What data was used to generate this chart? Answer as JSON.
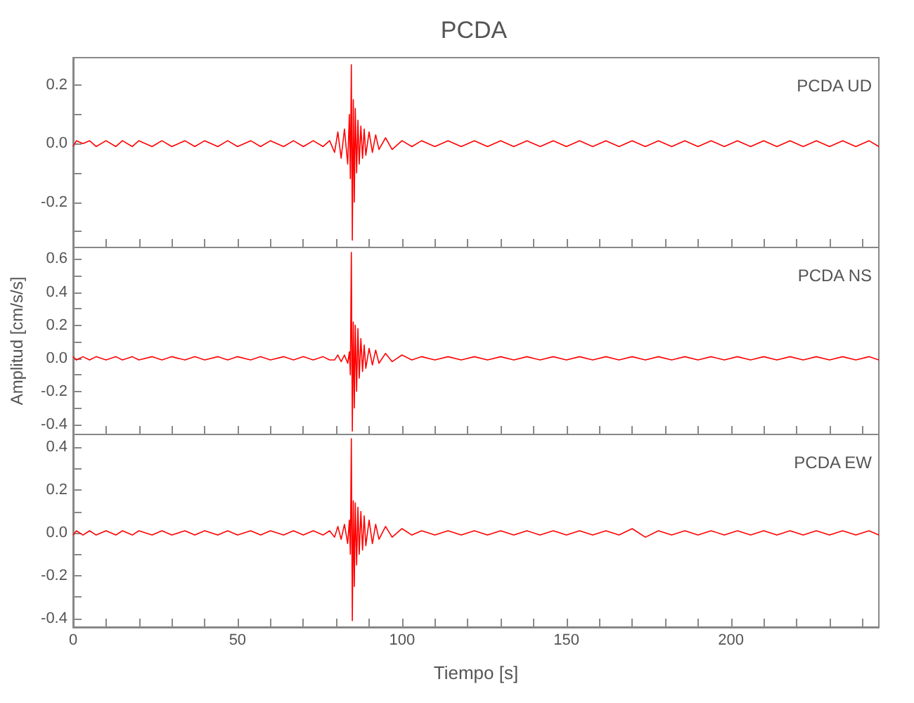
{
  "chart_data": [
    {
      "type": "line",
      "title": "PCDA",
      "annotations": [
        "PCDA UD"
      ],
      "tick_labels": "y",
      "x": [
        0,
        1,
        3,
        5,
        7,
        10,
        13,
        15,
        18,
        20,
        24,
        27,
        30,
        34,
        37,
        40,
        44,
        47,
        50,
        54,
        57,
        60,
        64,
        67,
        70,
        73,
        76,
        78,
        79.5,
        80.5,
        81.5,
        82.5,
        83.5,
        84,
        84.3,
        84.6,
        84.9,
        85.2,
        85.5,
        85.8,
        86.2,
        86.6,
        87,
        87.5,
        88,
        88.5,
        89,
        90,
        91,
        92,
        93,
        95,
        97,
        100,
        103,
        106,
        110,
        114,
        118,
        122,
        126,
        130,
        134,
        138,
        142,
        146,
        150,
        154,
        158,
        162,
        166,
        170,
        174,
        178,
        182,
        186,
        190,
        194,
        198,
        202,
        206,
        210,
        214,
        218,
        222,
        226,
        230,
        234,
        238,
        242,
        245
      ],
      "series": [
        {
          "color": "#ff0000",
          "values": [
            -0.01,
            0.01,
            0,
            0.01,
            -0.01,
            0.01,
            -0.01,
            0.01,
            -0.01,
            0.01,
            -0.01,
            0.01,
            -0.01,
            0.01,
            -0.01,
            0.01,
            -0.01,
            0.01,
            -0.01,
            0.01,
            -0.01,
            0.01,
            -0.01,
            0.01,
            -0.01,
            0.01,
            -0.01,
            0.01,
            -0.03,
            0.04,
            -0.05,
            0.05,
            -0.07,
            0.1,
            -0.12,
            0.27,
            -0.33,
            0.15,
            -0.2,
            0.12,
            -0.1,
            0.08,
            -0.07,
            0.06,
            -0.05,
            0.05,
            -0.04,
            0.04,
            -0.03,
            0.03,
            -0.02,
            0.02,
            -0.02,
            0.01,
            -0.01,
            0.01,
            -0.01,
            0.01,
            -0.01,
            0.01,
            -0.01,
            0.01,
            -0.01,
            0.01,
            -0.01,
            0.01,
            -0.01,
            0.01,
            -0.01,
            0.01,
            -0.01,
            0.01,
            -0.01,
            0.01,
            -0.01,
            0.01,
            -0.01,
            0.01,
            -0.01,
            0.01,
            -0.01,
            0.01,
            -0.01,
            0.01,
            -0.01,
            0.01,
            -0.01,
            0.01,
            -0.01,
            0.01,
            -0.01
          ]
        }
      ],
      "xlim": [
        0,
        245
      ],
      "xticks": [
        0,
        {
          "value": 10,
          "label": null
        },
        {
          "value": 20,
          "label": null
        },
        {
          "value": 30,
          "label": null
        },
        {
          "value": 40,
          "label": null
        },
        50,
        {
          "value": 60,
          "label": null
        },
        {
          "value": 70,
          "label": null
        },
        {
          "value": 80,
          "label": null
        },
        {
          "value": 90,
          "label": null
        },
        100,
        {
          "value": 110,
          "label": null
        },
        {
          "value": 120,
          "label": null
        },
        {
          "value": 130,
          "label": null
        },
        {
          "value": 140,
          "label": null
        },
        150,
        {
          "value": 160,
          "label": null
        },
        {
          "value": 170,
          "label": null
        },
        {
          "value": 180,
          "label": null
        },
        {
          "value": 190,
          "label": null
        },
        200,
        {
          "value": 210,
          "label": null
        },
        {
          "value": 220,
          "label": null
        },
        {
          "value": 230,
          "label": null
        },
        {
          "value": 240,
          "label": null
        }
      ],
      "ylim": [
        -0.355,
        0.294
      ],
      "yticks": [
        {
          "value": -0.3,
          "label": null
        },
        -0.2,
        {
          "value": -0.1,
          "label": null
        },
        {
          "value": 0,
          "label": "0.0"
        },
        {
          "value": 0.1,
          "label": null
        },
        0.2
      ]
    },
    {
      "type": "line",
      "ylabel": "Amplitud [cm/s/s]",
      "annotations": [
        "PCDA NS"
      ],
      "tick_labels": "y",
      "x": [
        0,
        1,
        3,
        5,
        7,
        10,
        13,
        15,
        18,
        20,
        24,
        27,
        30,
        34,
        37,
        40,
        44,
        47,
        50,
        54,
        57,
        60,
        64,
        67,
        70,
        73,
        76,
        78,
        79.5,
        80.5,
        81.5,
        82.5,
        83.5,
        84,
        84.3,
        84.6,
        84.9,
        85.2,
        85.5,
        85.8,
        86.2,
        86.6,
        87,
        87.5,
        88,
        88.5,
        89,
        90,
        91,
        92,
        93,
        95,
        97,
        100,
        103,
        106,
        110,
        114,
        118,
        122,
        126,
        130,
        134,
        138,
        142,
        146,
        150,
        154,
        158,
        162,
        166,
        170,
        174,
        178,
        182,
        186,
        190,
        194,
        198,
        202,
        206,
        210,
        214,
        218,
        222,
        226,
        230,
        234,
        238,
        242,
        245
      ],
      "series": [
        {
          "color": "#ff0000",
          "values": [
            0.01,
            -0.01,
            0.01,
            -0.01,
            0.01,
            -0.01,
            0.01,
            -0.01,
            0.01,
            -0.01,
            0.01,
            -0.01,
            0.01,
            -0.01,
            0.01,
            -0.01,
            0.01,
            -0.01,
            0.01,
            -0.01,
            0.01,
            -0.01,
            0.01,
            -0.01,
            0.01,
            -0.01,
            0.01,
            -0.01,
            -0.01,
            0.02,
            -0.02,
            0.02,
            -0.03,
            0.04,
            -0.1,
            0.64,
            -0.44,
            0.22,
            -0.3,
            0.2,
            -0.2,
            0.18,
            -0.12,
            0.12,
            -0.08,
            0.08,
            -0.06,
            0.06,
            -0.04,
            0.05,
            -0.03,
            0.03,
            -0.02,
            0.02,
            -0.01,
            0.01,
            -0.01,
            0.01,
            -0.01,
            0.01,
            -0.01,
            0.01,
            -0.01,
            0.01,
            -0.01,
            0.01,
            -0.01,
            0.01,
            -0.01,
            0.01,
            -0.01,
            0.01,
            -0.01,
            0.01,
            -0.01,
            0.01,
            -0.01,
            0.01,
            -0.01,
            0.01,
            -0.01,
            0.01,
            -0.01,
            0.01,
            -0.01,
            0.01,
            -0.01,
            0.01,
            -0.01,
            0.01,
            -0.01
          ]
        }
      ],
      "xlim": [
        0,
        245
      ],
      "xticks": [
        0,
        {
          "value": 10,
          "label": null
        },
        {
          "value": 20,
          "label": null
        },
        {
          "value": 30,
          "label": null
        },
        {
          "value": 40,
          "label": null
        },
        50,
        {
          "value": 60,
          "label": null
        },
        {
          "value": 70,
          "label": null
        },
        {
          "value": 80,
          "label": null
        },
        {
          "value": 90,
          "label": null
        },
        100,
        {
          "value": 110,
          "label": null
        },
        {
          "value": 120,
          "label": null
        },
        {
          "value": 130,
          "label": null
        },
        {
          "value": 140,
          "label": null
        },
        150,
        {
          "value": 160,
          "label": null
        },
        {
          "value": 170,
          "label": null
        },
        {
          "value": 180,
          "label": null
        },
        {
          "value": 190,
          "label": null
        },
        200,
        {
          "value": 210,
          "label": null
        },
        {
          "value": 220,
          "label": null
        },
        {
          "value": 230,
          "label": null
        },
        {
          "value": 240,
          "label": null
        }
      ],
      "ylim": [
        -0.46,
        0.67
      ],
      "yticks": [
        -0.4,
        {
          "value": -0.3,
          "label": null
        },
        -0.2,
        {
          "value": -0.1,
          "label": null
        },
        {
          "value": 0,
          "label": "0.0"
        },
        {
          "value": 0.1,
          "label": null
        },
        0.2,
        {
          "value": 0.3,
          "label": null
        },
        0.4,
        {
          "value": 0.5,
          "label": null
        },
        0.6
      ]
    },
    {
      "type": "line",
      "xlabel": "Tiempo [s]",
      "annotations": [
        "PCDA EW"
      ],
      "x": [
        0,
        1,
        3,
        5,
        7,
        10,
        13,
        15,
        18,
        20,
        24,
        27,
        30,
        34,
        37,
        40,
        44,
        47,
        50,
        54,
        57,
        60,
        64,
        67,
        70,
        73,
        76,
        78,
        79.5,
        80.5,
        81.5,
        82.5,
        83.5,
        84,
        84.3,
        84.6,
        84.9,
        85.2,
        85.5,
        85.8,
        86.2,
        86.6,
        87,
        87.5,
        88,
        88.5,
        89,
        90,
        91,
        92,
        93,
        95,
        97,
        100,
        103,
        106,
        110,
        114,
        118,
        122,
        126,
        130,
        134,
        138,
        142,
        146,
        150,
        154,
        158,
        162,
        166,
        170,
        174,
        178,
        182,
        186,
        190,
        194,
        198,
        202,
        206,
        210,
        214,
        218,
        222,
        226,
        230,
        234,
        238,
        242,
        245
      ],
      "series": [
        {
          "color": "#ff0000",
          "values": [
            -0.01,
            0.01,
            -0.01,
            0.01,
            -0.01,
            0.01,
            -0.01,
            0.01,
            -0.01,
            0.01,
            -0.01,
            0.01,
            -0.01,
            0.01,
            -0.01,
            0.01,
            -0.01,
            0.01,
            -0.01,
            0.01,
            -0.01,
            0.01,
            -0.01,
            0.01,
            -0.01,
            0.01,
            -0.01,
            0.01,
            -0.02,
            0.03,
            -0.03,
            0.04,
            -0.05,
            0.06,
            -0.1,
            0.44,
            -0.41,
            0.15,
            -0.25,
            0.14,
            -0.15,
            0.12,
            -0.1,
            0.1,
            -0.08,
            0.08,
            -0.06,
            0.06,
            -0.05,
            0.04,
            -0.03,
            0.03,
            -0.02,
            0.02,
            -0.01,
            0.01,
            -0.01,
            0.01,
            -0.01,
            0.01,
            -0.01,
            0.01,
            -0.01,
            0.01,
            -0.01,
            0.01,
            -0.01,
            0.01,
            -0.01,
            0.01,
            -0.01,
            0.02,
            -0.02,
            0.01,
            -0.01,
            0.01,
            -0.01,
            0.01,
            -0.01,
            0.01,
            -0.01,
            0.01,
            -0.01,
            0.01,
            -0.01,
            0.01,
            -0.01,
            0.01,
            -0.01,
            0.01,
            -0.01
          ]
        }
      ],
      "xlim": [
        0,
        245
      ],
      "xticks": [
        0,
        {
          "value": 10,
          "label": null
        },
        {
          "value": 20,
          "label": null
        },
        {
          "value": 30,
          "label": null
        },
        {
          "value": 40,
          "label": null
        },
        50,
        {
          "value": 60,
          "label": null
        },
        {
          "value": 70,
          "label": null
        },
        {
          "value": 80,
          "label": null
        },
        {
          "value": 90,
          "label": null
        },
        100,
        {
          "value": 110,
          "label": null
        },
        {
          "value": 120,
          "label": null
        },
        {
          "value": 130,
          "label": null
        },
        {
          "value": 140,
          "label": null
        },
        150,
        {
          "value": 160,
          "label": null
        },
        {
          "value": 170,
          "label": null
        },
        {
          "value": 180,
          "label": null
        },
        {
          "value": 190,
          "label": null
        },
        200,
        {
          "value": 210,
          "label": null
        },
        {
          "value": 220,
          "label": null
        },
        {
          "value": 230,
          "label": null
        },
        {
          "value": 240,
          "label": null
        }
      ],
      "ylim": [
        -0.44,
        0.46
      ],
      "yticks": [
        -0.4,
        {
          "value": -0.3,
          "label": null
        },
        -0.2,
        {
          "value": -0.1,
          "label": null
        },
        {
          "value": 0,
          "label": "0.0"
        },
        {
          "value": 0.1,
          "label": null
        },
        0.2,
        {
          "value": 0.3,
          "label": null
        },
        0.4
      ]
    }
  ]
}
